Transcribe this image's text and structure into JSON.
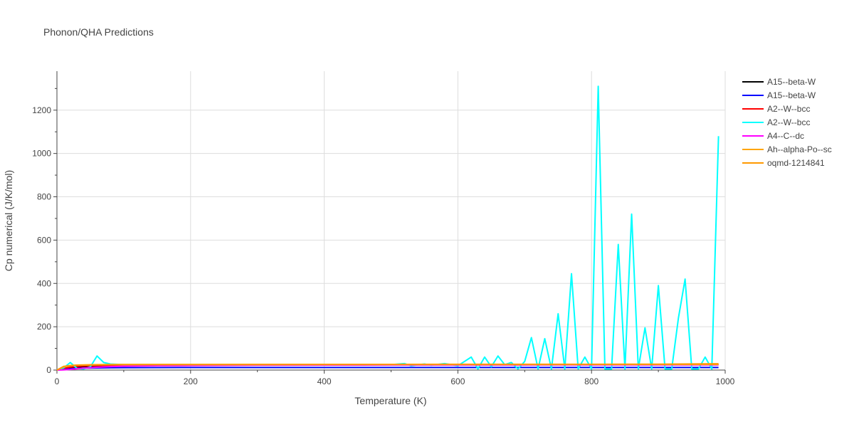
{
  "chart_data": {
    "type": "line",
    "title": "Phonon/QHA Predictions",
    "xlabel": "Temperature (K)",
    "ylabel": "Cp numerical (J/K/mol)",
    "xlim": [
      0,
      1000
    ],
    "ylim": [
      0,
      1380
    ],
    "xticks": [
      0,
      200,
      400,
      600,
      800,
      1000
    ],
    "yticks": [
      0,
      200,
      400,
      600,
      800,
      1000,
      1200
    ],
    "grid": true,
    "legend_position": "right",
    "series": [
      {
        "name": "A15--beta-W",
        "color": "#000000",
        "x": [
          0,
          10,
          20,
          30,
          40,
          60,
          80,
          100,
          150,
          200,
          300,
          400,
          500,
          600,
          700,
          800,
          900,
          990
        ],
        "y": [
          0,
          5,
          9,
          13,
          16,
          19,
          21,
          22,
          23,
          24,
          24.5,
          24.8,
          25,
          25,
          25.1,
          25.2,
          25.2,
          25.3
        ]
      },
      {
        "name": "A15--beta-W",
        "color": "#0000ff",
        "x": [
          0,
          10,
          20,
          30,
          40,
          60,
          80,
          100,
          150,
          200,
          300,
          400,
          500,
          600,
          700,
          800,
          900,
          990
        ],
        "y": [
          0,
          3,
          6,
          8,
          9,
          10,
          10.5,
          11,
          11.5,
          12,
          12,
          12,
          12,
          12,
          12,
          12,
          12,
          12
        ]
      },
      {
        "name": "A2--W--bcc",
        "color": "#ff0000",
        "x": [
          0,
          10,
          20,
          30,
          40,
          60,
          80,
          100,
          150,
          200,
          300,
          400,
          500,
          600,
          700,
          800,
          900,
          990
        ],
        "y": [
          0,
          8,
          13,
          17,
          19,
          21,
          22,
          23,
          23.5,
          24,
          24.3,
          24.5,
          24.6,
          24.7,
          24.8,
          24.9,
          25,
          25
        ]
      },
      {
        "name": "A2--W--bcc",
        "color": "#00ffff",
        "x": [
          0,
          10,
          20,
          30,
          40,
          50,
          60,
          70,
          80,
          100,
          150,
          200,
          300,
          400,
          500,
          520,
          530,
          550,
          560,
          580,
          590,
          600,
          610,
          620,
          630,
          640,
          650,
          660,
          670,
          680,
          690,
          700,
          710,
          720,
          730,
          740,
          750,
          760,
          770,
          780,
          790,
          800,
          810,
          820,
          830,
          840,
          850,
          860,
          870,
          880,
          890,
          900,
          910,
          920,
          930,
          940,
          950,
          960,
          970,
          980,
          990
        ],
        "y": [
          0,
          10,
          35,
          8,
          5,
          15,
          65,
          35,
          28,
          25,
          25,
          25,
          25,
          25,
          25,
          30,
          20,
          28,
          22,
          30,
          25,
          20,
          40,
          60,
          5,
          60,
          15,
          65,
          25,
          35,
          5,
          40,
          150,
          5,
          145,
          5,
          260,
          5,
          445,
          5,
          60,
          5,
          1310,
          5,
          5,
          580,
          5,
          720,
          5,
          195,
          5,
          390,
          5,
          5,
          240,
          420,
          5,
          5,
          60,
          5,
          1080
        ]
      },
      {
        "name": "A4--C--dc",
        "color": "#ff00ff",
        "x": [
          0,
          10,
          20,
          30,
          40,
          60,
          80,
          100,
          150,
          200,
          300,
          400,
          500,
          600,
          700,
          800,
          900,
          990
        ],
        "y": [
          0,
          1,
          3,
          6,
          9,
          13,
          16,
          18,
          20,
          21,
          22.5,
          23,
          23.3,
          23.5,
          23.6,
          23.7,
          23.8,
          23.9
        ]
      },
      {
        "name": "Ah--alpha-Po--sc",
        "color": "#ffa500",
        "x": [
          0,
          10,
          20,
          30,
          40,
          60,
          80,
          100,
          150,
          200,
          300,
          400,
          500,
          600,
          700,
          800,
          900,
          990
        ],
        "y": [
          0,
          15,
          20,
          22,
          23,
          24,
          24.5,
          24.8,
          25,
          25,
          25.2,
          25.3,
          25.4,
          25.5,
          25.6,
          25.7,
          25.8,
          26
        ]
      },
      {
        "name": "oqmd-1214841",
        "color": "#ff9900",
        "x": [
          0,
          10,
          20,
          30,
          40,
          60,
          80,
          100,
          150,
          200,
          300,
          400,
          500,
          600,
          700,
          800,
          900,
          990
        ],
        "y": [
          0,
          17,
          21,
          23,
          24,
          25,
          25.5,
          25.8,
          26,
          26,
          26.2,
          26.3,
          26.4,
          26.5,
          26.6,
          26.8,
          27,
          29
        ]
      }
    ]
  }
}
